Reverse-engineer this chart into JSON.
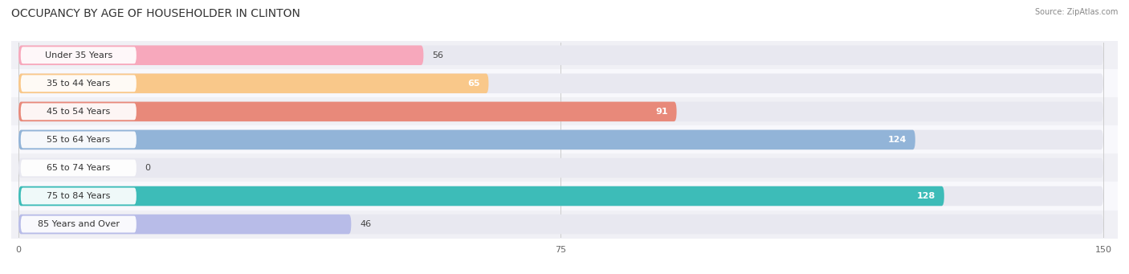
{
  "title": "OCCUPANCY BY AGE OF HOUSEHOLDER IN CLINTON",
  "source": "Source: ZipAtlas.com",
  "categories": [
    "Under 35 Years",
    "35 to 44 Years",
    "45 to 54 Years",
    "55 to 64 Years",
    "65 to 74 Years",
    "75 to 84 Years",
    "85 Years and Over"
  ],
  "values": [
    56,
    65,
    91,
    124,
    0,
    128,
    46
  ],
  "bar_colors": [
    "#f7a8bc",
    "#f9c88a",
    "#e8897a",
    "#92b4d8",
    "#d4aad8",
    "#3dbcb8",
    "#b8bce8"
  ],
  "bar_bg_color": "#e8e8f0",
  "row_bg_colors": [
    "#f0f0f5",
    "#f8f8fc"
  ],
  "xlim": [
    0,
    150
  ],
  "xticks": [
    0,
    75,
    150
  ],
  "figsize": [
    14.06,
    3.41
  ],
  "dpi": 100,
  "title_fontsize": 10,
  "label_fontsize": 8,
  "value_fontsize": 8,
  "bar_height": 0.7,
  "value_inside_threshold": 60
}
